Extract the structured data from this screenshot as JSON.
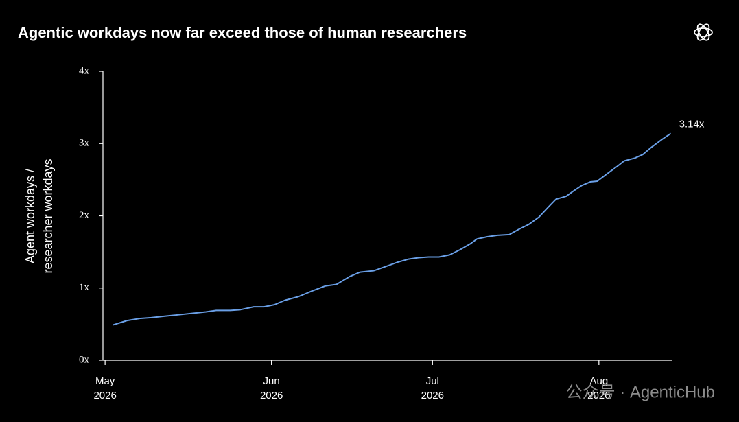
{
  "chart_data": {
    "type": "line",
    "title": "Agentic workdays now far exceed those of human researchers",
    "ylabel": [
      "Agent workdays /",
      "researcher workdays"
    ],
    "x": [
      1.5,
      4.1,
      6.6,
      8.6,
      11.1,
      13.7,
      16.2,
      18.8,
      20.7,
      23.3,
      25.2,
      27.7,
      29.6,
      31.6,
      33.5,
      36.0,
      38.6,
      41.1,
      43.1,
      45.6,
      47.5,
      50.1,
      52.0,
      54.6,
      56.5,
      58.4,
      60.3,
      62.2,
      64.2,
      66.1,
      68.0,
      69.3,
      71.2,
      73.1,
      75.3,
      77.0,
      78.9,
      80.8,
      82.7,
      84.0,
      85.9,
      87.2,
      88.8,
      90.4,
      91.7,
      93.5,
      95.5,
      96.7,
      98.7,
      100.2,
      101.8,
      103.8,
      105.4
    ],
    "series": [
      {
        "name": "Agent workdays / researcher workdays",
        "color": "#6a9fe6",
        "values": [
          0.49,
          0.55,
          0.58,
          0.59,
          0.61,
          0.63,
          0.65,
          0.67,
          0.69,
          0.69,
          0.7,
          0.74,
          0.74,
          0.77,
          0.83,
          0.88,
          0.96,
          1.03,
          1.05,
          1.16,
          1.22,
          1.24,
          1.29,
          1.36,
          1.4,
          1.42,
          1.43,
          1.43,
          1.46,
          1.53,
          1.61,
          1.68,
          1.71,
          1.73,
          1.74,
          1.81,
          1.88,
          1.98,
          2.13,
          2.23,
          2.27,
          2.34,
          2.42,
          2.47,
          2.48,
          2.58,
          2.69,
          2.76,
          2.8,
          2.85,
          2.95,
          3.06,
          3.14
        ]
      }
    ],
    "annotation": "3.14x",
    "xlim": [
      -0.4,
      105.7
    ],
    "xticks": [
      {
        "value": 0,
        "label": [
          "May",
          "2026"
        ]
      },
      {
        "value": 31,
        "label": [
          "Jun",
          "2026"
        ]
      },
      {
        "value": 61,
        "label": [
          "Jul",
          "2026"
        ]
      },
      {
        "value": 92,
        "label": [
          "Aug",
          "2026"
        ]
      }
    ],
    "ylim": [
      0,
      4
    ],
    "yticks": [
      {
        "value": 0,
        "label": "0x"
      },
      {
        "value": 1,
        "label": "1x"
      },
      {
        "value": 2,
        "label": "2x"
      },
      {
        "value": 3,
        "label": "3x"
      },
      {
        "value": 4,
        "label": "4x"
      }
    ],
    "grid": false,
    "watermark": "公众号 · AgenticHub"
  }
}
